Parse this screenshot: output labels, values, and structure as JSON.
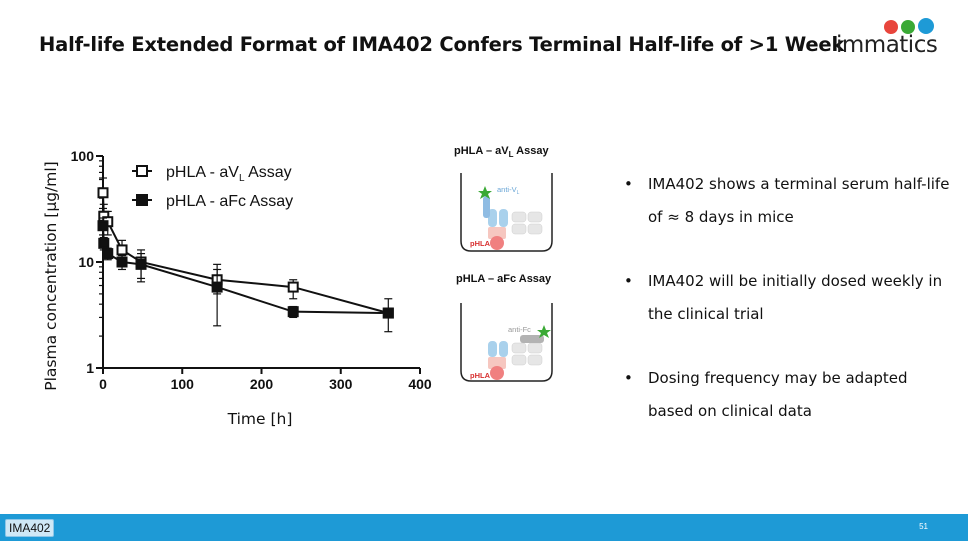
{
  "slide": {
    "title": "Half-life Extended Format of IMA402 Confers Terminal Half-life of >1 Week",
    "logo_text": "immatics",
    "footer_tag": "IMA402",
    "page_number": "51"
  },
  "assays": [
    {
      "title_main": "pHLA – aV",
      "title_sub": "L",
      "title_tail": " Assay",
      "detection_label": "anti-V",
      "detection_sub": "L",
      "target_label": "pHLA"
    },
    {
      "title_main": "pHLA – aFc Assay",
      "detection_label": "anti-Fc",
      "target_label": "pHLA"
    }
  ],
  "bullets": [
    "IMA402 shows a terminal serum half-life of ≈ 8 days in mice",
    "IMA402 will be initially dosed weekly in the clinical trial",
    "Dosing frequency may be adapted based on clinical data"
  ],
  "colors": {
    "footer": "#1e9ad6",
    "star": "#3aa935",
    "target_pink": "#f08080",
    "antibody_blue": "#a9d1ec"
  },
  "chart_data": {
    "type": "scatter",
    "title": "",
    "xlabel": "Time [h]",
    "ylabel": "Plasma concentration [µg/ml]",
    "xlim": [
      0,
      400
    ],
    "ylim": [
      1,
      100
    ],
    "yscale": "log",
    "x_ticks": [
      0,
      100,
      200,
      300,
      400
    ],
    "y_ticks": [
      1,
      10,
      100
    ],
    "x_tick_labels": [
      "0",
      "100",
      "200",
      "300",
      "400"
    ],
    "y_tick_labels": [
      "1",
      "10",
      "100"
    ],
    "series": [
      {
        "name": "pHLA - aVL Assay",
        "legend_main": "pHLA - aV",
        "legend_sub": "L",
        "legend_tail": " Assay",
        "marker": "open-square",
        "x": [
          0,
          1,
          6,
          24,
          48,
          144,
          240,
          360
        ],
        "y": [
          45,
          27,
          24,
          13,
          10,
          6.8,
          5.8,
          3.3
        ],
        "err": [
          [
            32,
            62
          ],
          [
            20,
            35
          ],
          [
            18,
            30
          ],
          [
            10,
            16
          ],
          [
            6.5,
            13
          ],
          [
            2.5,
            9.5
          ],
          [
            4.5,
            6.8
          ],
          [
            2.2,
            4.5
          ]
        ]
      },
      {
        "name": "pHLA - aFc Assay",
        "legend_main": "pHLA - aFc Assay",
        "marker": "filled-square",
        "x": [
          0,
          1,
          6,
          24,
          48,
          144,
          240,
          360
        ],
        "y": [
          22,
          15,
          12,
          10,
          9.5,
          5.8,
          3.4,
          3.3
        ],
        "err": [
          [
            18,
            26
          ],
          [
            13,
            17
          ],
          [
            10.5,
            13.5
          ],
          [
            8.5,
            11.5
          ],
          [
            7,
            12
          ],
          [
            5,
            8.5
          ],
          [
            3.0,
            3.8
          ],
          [
            3.0,
            3.6
          ]
        ]
      }
    ]
  }
}
